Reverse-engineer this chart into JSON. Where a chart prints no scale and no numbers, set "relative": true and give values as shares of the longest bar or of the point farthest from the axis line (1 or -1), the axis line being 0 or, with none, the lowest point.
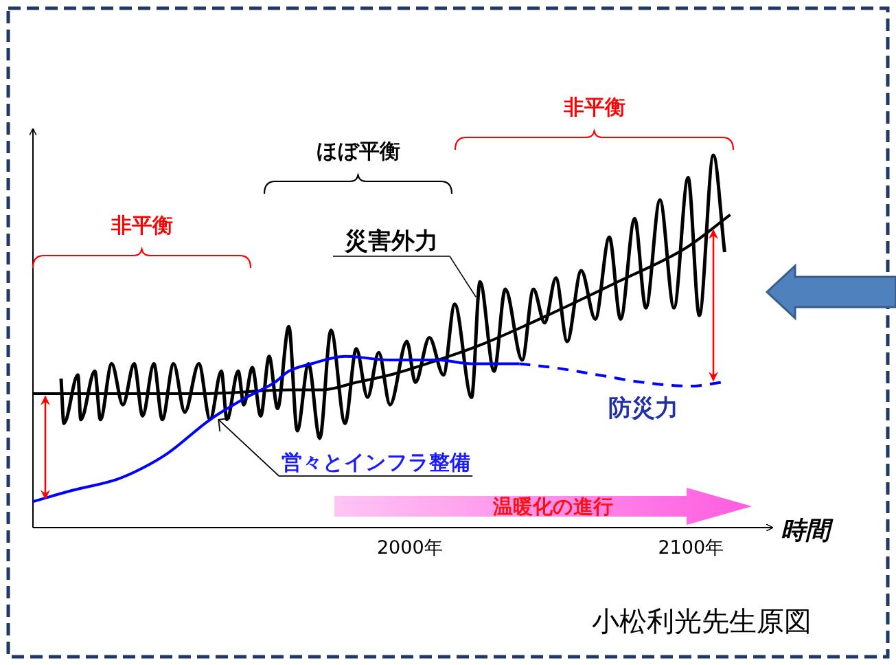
{
  "chart_data": {
    "type": "line",
    "relative": true,
    "xlabel": "時間",
    "xlim": [
      1866,
      2129
    ],
    "xticks": [
      {
        "value": 2000,
        "label": "2000年"
      },
      {
        "value": 2100,
        "label": "2100年"
      }
    ],
    "series": [
      {
        "name": "災害外力",
        "color": "#000000",
        "x": [
          1876,
          1877,
          1882,
          1883,
          1888,
          1890,
          1894,
          1898,
          1902,
          1905,
          1909,
          1912,
          1916,
          1920,
          1925,
          1929,
          1933,
          1935,
          1939,
          1941,
          1944,
          1947,
          1950,
          1953,
          1957,
          1960,
          1964,
          1968,
          1972,
          1977,
          1981,
          1985,
          1989,
          1993,
          1999,
          2002,
          2007,
          2012,
          2016,
          2022,
          2025,
          2030,
          2034,
          2040,
          2044,
          2048,
          2052,
          2056,
          2061,
          2066,
          2071,
          2075,
          2080,
          2084,
          2089,
          2094,
          2099,
          2103,
          2108,
          2112
        ],
        "values": [
          0.4,
          0.28,
          0.41,
          0.29,
          0.42,
          0.29,
          0.44,
          0.33,
          0.44,
          0.3,
          0.44,
          0.29,
          0.44,
          0.31,
          0.44,
          0.29,
          0.42,
          0.29,
          0.42,
          0.33,
          0.43,
          0.3,
          0.46,
          0.32,
          0.54,
          0.26,
          0.44,
          0.24,
          0.53,
          0.28,
          0.48,
          0.35,
          0.47,
          0.33,
          0.5,
          0.39,
          0.51,
          0.41,
          0.6,
          0.35,
          0.66,
          0.42,
          0.64,
          0.45,
          0.64,
          0.55,
          0.67,
          0.5,
          0.69,
          0.56,
          0.78,
          0.56,
          0.83,
          0.59,
          0.88,
          0.59,
          0.94,
          0.57,
          1.0,
          0.74
        ]
      },
      {
        "color": "#000000",
        "x": [
          1866,
          1927,
          1957,
          1969,
          1981,
          1993,
          2010,
          2025,
          2049,
          2074,
          2098,
          2114
        ],
        "values": [
          0.36,
          0.36,
          0.37,
          0.37,
          0.39,
          0.41,
          0.45,
          0.49,
          0.57,
          0.66,
          0.75,
          0.84
        ]
      },
      {
        "color": "#0000ff",
        "x": [
          1866,
          1880,
          1896,
          1905,
          1914,
          1929,
          1942,
          1952,
          1957,
          1965,
          1977,
          1993,
          2010,
          2022,
          2039
        ],
        "values": [
          0.07,
          0.1,
          0.13,
          0.16,
          0.2,
          0.29,
          0.35,
          0.39,
          0.42,
          0.44,
          0.46,
          0.45,
          0.45,
          0.44,
          0.44
        ]
      },
      {
        "name": "防災力",
        "color": "#0000ff",
        "line_style": "dashed",
        "x": [
          2039,
          2051,
          2067,
          2083,
          2100,
          2111
        ],
        "values": [
          0.44,
          0.43,
          0.41,
          0.39,
          0.38,
          0.39
        ]
      }
    ],
    "annotations": [
      {
        "text": "営々とインフラ整備",
        "x": 1932,
        "y": 0.29
      },
      "温暖化の進行",
      "小松利光先生原図",
      "非平衡",
      "ほぼ平衡",
      "非平衡"
    ]
  }
}
